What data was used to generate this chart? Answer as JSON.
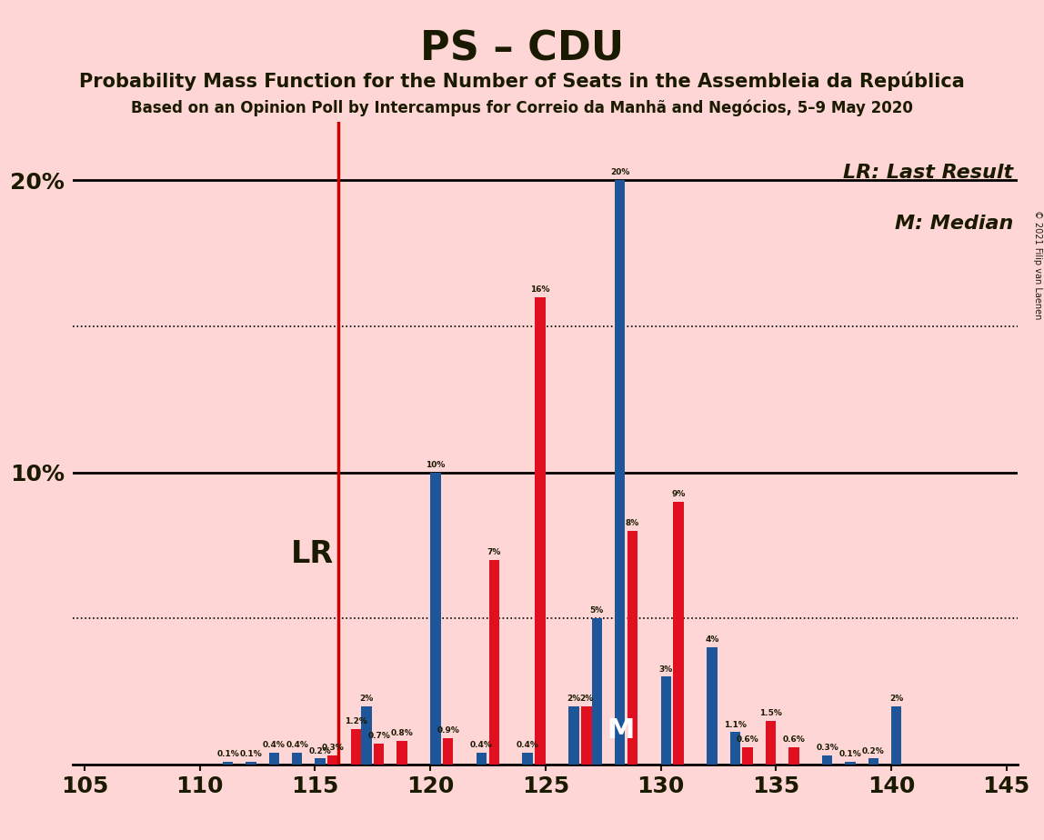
{
  "title": "PS – CDU",
  "subtitle1": "Probability Mass Function for the Number of Seats in the Assembleia da República",
  "subtitle2": "Based on an Opinion Poll by Intercampus for Correio da Manhã and Negócios, 5–9 May 2020",
  "copyright": "© 2021 Filip van Laenen",
  "legend_lr": "LR: Last Result",
  "legend_m": "M: Median",
  "background_color": "#FFD6D6",
  "bar_color_ps": "#E01020",
  "bar_color_cdu": "#1E5799",
  "text_color_dark": "#1A1A00",
  "lr_line_color": "#CC0000",
  "lr_x": 116,
  "median_x": 128,
  "xlim": [
    104.5,
    145.5
  ],
  "ylim": [
    0,
    22
  ],
  "xticks": [
    105,
    110,
    115,
    120,
    125,
    130,
    135,
    140,
    145
  ],
  "hlines_solid": [
    10,
    20
  ],
  "hlines_dotted": [
    5,
    15
  ],
  "seats": [
    105,
    106,
    107,
    108,
    109,
    110,
    111,
    112,
    113,
    114,
    115,
    116,
    117,
    118,
    119,
    120,
    121,
    122,
    123,
    124,
    125,
    126,
    127,
    128,
    129,
    130,
    131,
    132,
    133,
    134,
    135,
    136,
    137,
    138,
    139,
    140,
    141,
    142,
    143,
    144,
    145
  ],
  "ps_values": [
    0,
    0,
    0,
    0,
    0,
    0,
    0,
    0,
    0,
    0,
    0,
    0.3,
    1.2,
    0.7,
    0.8,
    0,
    0.9,
    0,
    7.0,
    0,
    16.0,
    0,
    2.0,
    0,
    8.0,
    0,
    9.0,
    0,
    0,
    0.6,
    1.5,
    0.6,
    0,
    0,
    0,
    0,
    0,
    0,
    0,
    0,
    0
  ],
  "cdu_values": [
    0,
    0,
    0,
    0,
    0,
    0,
    0.1,
    0.1,
    0.4,
    0.4,
    0.2,
    0,
    2.0,
    0,
    0,
    10.0,
    0,
    0.4,
    0,
    0.4,
    0,
    2.0,
    5.0,
    20.0,
    0,
    3.0,
    0,
    4.0,
    1.1,
    0,
    0,
    0,
    0.3,
    0.1,
    0.2,
    2.0,
    0,
    0,
    0,
    0,
    0
  ],
  "bar_width": 0.45,
  "label_fontsize": 6.5,
  "tick_fontsize": 18,
  "title_fontsize": 32,
  "sub1_fontsize": 15,
  "sub2_fontsize": 12,
  "legend_fontsize": 16,
  "lr_label_fontsize": 24,
  "m_label_fontsize": 22
}
